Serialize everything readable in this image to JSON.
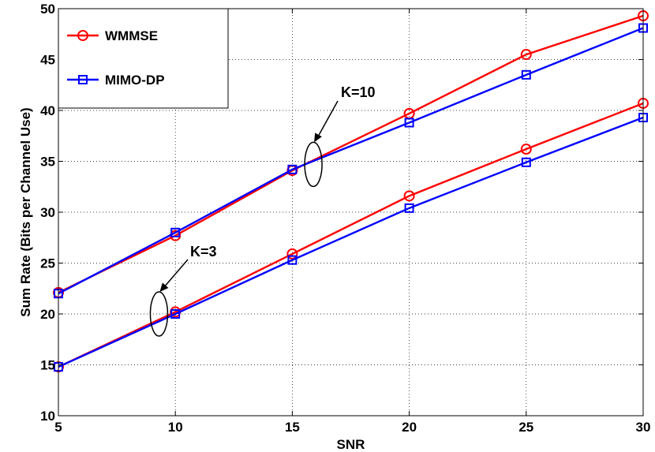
{
  "chart_data": {
    "type": "line",
    "title": "",
    "xlabel": "SNR",
    "ylabel": "Sum Rate (Bits per Channel Use)",
    "xlim": [
      5,
      30
    ],
    "ylim": [
      10,
      50
    ],
    "xticks": [
      5,
      10,
      15,
      20,
      25,
      30
    ],
    "yticks": [
      10,
      15,
      20,
      25,
      30,
      35,
      40,
      45,
      50
    ],
    "grid": true,
    "legend_position": "top-left",
    "series": [
      {
        "name": "WMMSE",
        "group": "K=10",
        "color": "#ff0000",
        "marker": "circle",
        "x": [
          5,
          10,
          15,
          20,
          25,
          30
        ],
        "values": [
          22.1,
          27.7,
          34.1,
          39.7,
          45.5,
          49.3
        ]
      },
      {
        "name": "MIMO-DP",
        "group": "K=10",
        "color": "#0000ff",
        "marker": "square",
        "x": [
          5,
          10,
          15,
          20,
          25,
          30
        ],
        "values": [
          22.0,
          28.0,
          34.2,
          38.8,
          43.5,
          48.1
        ]
      },
      {
        "name": "WMMSE",
        "group": "K=3",
        "color": "#ff0000",
        "marker": "circle",
        "x": [
          5,
          10,
          15,
          20,
          25,
          30
        ],
        "values": [
          14.8,
          20.2,
          25.9,
          31.6,
          36.2,
          40.7
        ]
      },
      {
        "name": "MIMO-DP",
        "group": "K=3",
        "color": "#0000ff",
        "marker": "square",
        "x": [
          5,
          10,
          15,
          20,
          25,
          30
        ],
        "values": [
          14.8,
          20.0,
          25.3,
          30.4,
          34.9,
          39.3
        ]
      }
    ],
    "legend": [
      {
        "label": "WMMSE",
        "color": "#ff0000",
        "marker": "circle"
      },
      {
        "label": "MIMO-DP",
        "color": "#0000ff",
        "marker": "square"
      }
    ],
    "annotations": [
      {
        "label": "K=10",
        "x": 15.9,
        "y": 34.7
      },
      {
        "label": "K=3",
        "x": 9.3,
        "y": 20.0
      }
    ]
  }
}
